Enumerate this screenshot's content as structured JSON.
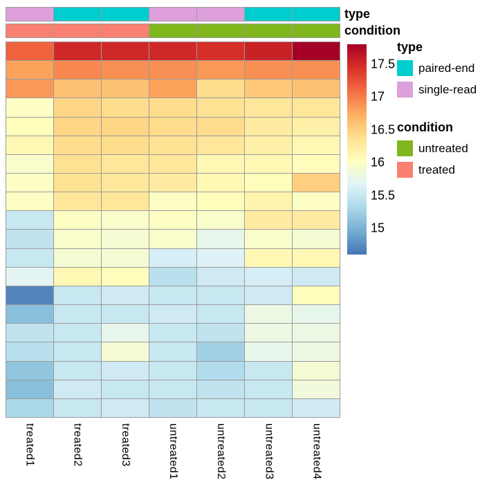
{
  "chart_data": {
    "type": "heatmap",
    "columns": [
      "treated1",
      "treated2",
      "treated3",
      "untreated1",
      "untreated2",
      "untreated3",
      "untreated4"
    ],
    "n_rows": 20,
    "values": [
      [
        17.15,
        17.5,
        17.5,
        17.5,
        17.45,
        17.55,
        17.8
      ],
      [
        16.8,
        16.95,
        16.9,
        16.9,
        16.85,
        16.9,
        16.9
      ],
      [
        16.85,
        16.6,
        16.6,
        16.8,
        16.4,
        16.55,
        16.6
      ],
      [
        16.0,
        16.45,
        16.4,
        16.4,
        16.35,
        16.3,
        16.3
      ],
      [
        16.05,
        16.45,
        16.45,
        16.4,
        16.4,
        16.25,
        16.2
      ],
      [
        16.1,
        16.4,
        16.4,
        16.35,
        16.3,
        16.2,
        16.1
      ],
      [
        15.95,
        16.35,
        16.3,
        16.3,
        16.1,
        16.1,
        16.05
      ],
      [
        16.0,
        16.35,
        16.3,
        16.25,
        16.1,
        16.05,
        16.5
      ],
      [
        16.0,
        16.3,
        16.3,
        16.0,
        16.05,
        16.15,
        16.0
      ],
      [
        15.5,
        16.0,
        15.95,
        16.0,
        15.95,
        16.25,
        16.25
      ],
      [
        15.45,
        15.95,
        15.9,
        15.95,
        15.75,
        15.95,
        15.9
      ],
      [
        15.5,
        15.9,
        15.9,
        15.6,
        15.65,
        16.1,
        16.1
      ],
      [
        15.7,
        16.1,
        16.05,
        15.4,
        15.55,
        15.6,
        15.55
      ],
      [
        14.7,
        15.5,
        15.55,
        15.5,
        15.5,
        15.55,
        16.05
      ],
      [
        15.1,
        15.5,
        15.5,
        15.55,
        15.5,
        15.8,
        15.75
      ],
      [
        15.45,
        15.5,
        15.75,
        15.5,
        15.45,
        15.8,
        15.8
      ],
      [
        15.4,
        15.5,
        15.9,
        15.5,
        15.25,
        15.75,
        15.8
      ],
      [
        15.15,
        15.5,
        15.55,
        15.5,
        15.35,
        15.5,
        15.9
      ],
      [
        15.1,
        15.55,
        15.5,
        15.5,
        15.45,
        15.5,
        15.85
      ],
      [
        15.3,
        15.5,
        15.55,
        15.45,
        15.5,
        15.5,
        15.55
      ]
    ],
    "color_domain": [
      14.6,
      17.8
    ],
    "palette": [
      "#4575B4",
      "#74ADD1",
      "#ABD9E9",
      "#E0F3F8",
      "#FFFFBF",
      "#FEE090",
      "#FDAE61",
      "#F46D43",
      "#D73027",
      "#A50026"
    ],
    "colorbar_ticks": [
      "17.5",
      "17",
      "16.5",
      "16",
      "15.5",
      "15"
    ],
    "annotation_row_labels": [
      "type",
      "condition"
    ],
    "annotations": {
      "type": {
        "per_column": [
          "single-read",
          "paired-end",
          "paired-end",
          "single-read",
          "single-read",
          "paired-end",
          "paired-end"
        ],
        "colors": {
          "paired-end": "#00CDCD",
          "single-read": "#DDA0DD"
        }
      },
      "condition": {
        "per_column": [
          "treated",
          "treated",
          "treated",
          "untreated",
          "untreated",
          "untreated",
          "untreated"
        ],
        "colors": {
          "untreated": "#80B71C",
          "treated": "#FA8072"
        }
      }
    },
    "legend": {
      "type": {
        "title": "type",
        "entries": [
          {
            "label": "paired-end",
            "color": "#00CDCD"
          },
          {
            "label": "single-read",
            "color": "#DDA0DD"
          }
        ]
      },
      "condition": {
        "title": "condition",
        "entries": [
          {
            "label": "untreated",
            "color": "#80B71C"
          },
          {
            "label": "treated",
            "color": "#FA8072"
          }
        ]
      }
    }
  }
}
